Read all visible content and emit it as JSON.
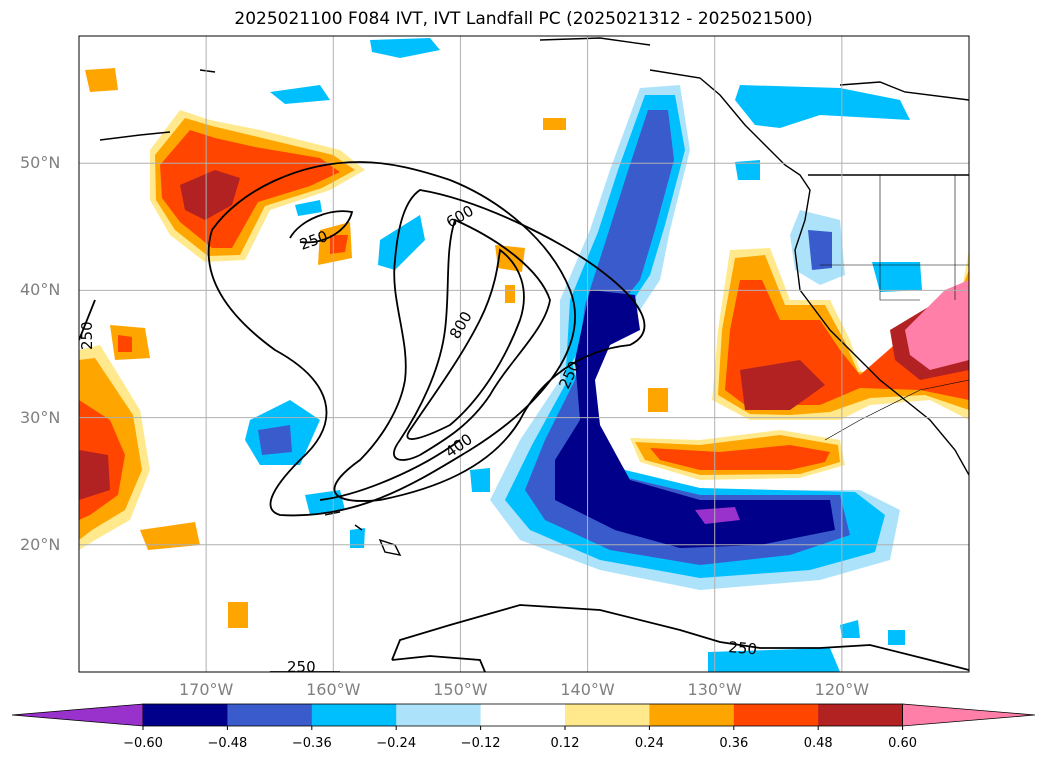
{
  "title": "2025021100 F084 IVT, IVT Landfall PC (2025021312 - 2025021500)",
  "map": {
    "lat_labels": [
      {
        "text": "50°N",
        "lat": 50
      },
      {
        "text": "40°N",
        "lat": 40
      },
      {
        "text": "30°N",
        "lat": 30
      },
      {
        "text": "20°N",
        "lat": 20
      }
    ],
    "lon_labels": [
      {
        "text": "170°W",
        "lon": -170
      },
      {
        "text": "160°W",
        "lon": -160
      },
      {
        "text": "150°W",
        "lon": -150
      },
      {
        "text": "140°W",
        "lon": -140
      },
      {
        "text": "130°W",
        "lon": -130
      },
      {
        "text": "120°W",
        "lon": -120
      }
    ],
    "lon_range": [
      -180,
      -110
    ],
    "lat_range": [
      10,
      60
    ],
    "grid": true,
    "contour_labels": [
      "250",
      "600",
      "800",
      "250",
      "400",
      "250",
      "250",
      "250"
    ]
  },
  "colorbar": {
    "ticks": [
      "−0.60",
      "−0.48",
      "−0.36",
      "−0.24",
      "−0.12",
      "0.12",
      "0.24",
      "0.36",
      "0.48",
      "0.60"
    ],
    "colors": [
      "#9932cc",
      "#00008b",
      "#3a5bcc",
      "#00bfff",
      "#ade3fa",
      "#ffffff",
      "#ffe98c",
      "#ffa500",
      "#ff4500",
      "#b22222",
      "#ff7fa8"
    ],
    "extend": "both"
  }
}
